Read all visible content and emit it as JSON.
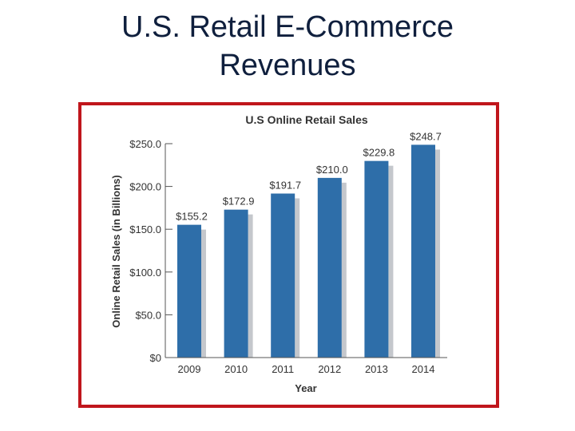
{
  "slide": {
    "title_line1": "U.S. Retail E-Commerce",
    "title_line2": "Revenues"
  },
  "colors": {
    "frame": "#c0161c",
    "bar": "#2e6ea9",
    "bar_shadow": "#c4c7cc"
  },
  "chart_data": {
    "type": "bar",
    "title": "U.S Online Retail Sales",
    "xlabel": "Year",
    "ylabel": "Online Retail Sales (in Billions)",
    "categories": [
      "2009",
      "2010",
      "2011",
      "2012",
      "2013",
      "2014"
    ],
    "values": [
      155.2,
      172.9,
      191.7,
      210.0,
      229.8,
      248.7
    ],
    "value_labels": [
      "$155.2",
      "$172.9",
      "$191.7",
      "$210.0",
      "$229.8",
      "$248.7"
    ],
    "yticks": [
      0,
      50,
      100,
      150,
      200,
      250
    ],
    "ytick_labels": [
      "$0",
      "$50.0",
      "$100.0",
      "$150.0",
      "$200.0",
      "$250.0"
    ],
    "ylim": [
      0,
      250
    ],
    "grid": false,
    "legend": "none"
  }
}
